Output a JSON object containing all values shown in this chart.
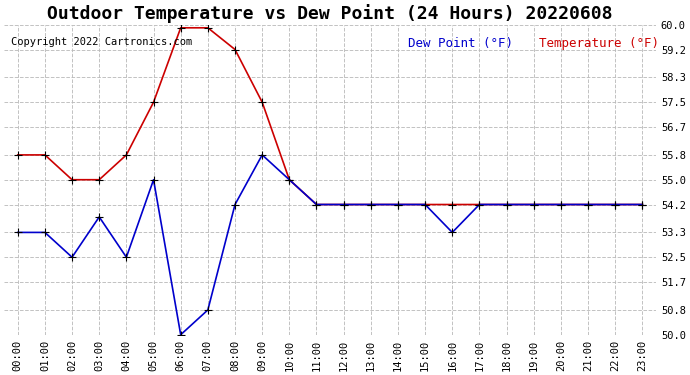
{
  "title": "Outdoor Temperature vs Dew Point (24 Hours) 20220608",
  "copyright_text": "Copyright 2022 Cartronics.com",
  "legend_dew": "Dew Point (°F)",
  "legend_temp": "Temperature (°F)",
  "hours": [
    "00:00",
    "01:00",
    "02:00",
    "03:00",
    "04:00",
    "05:00",
    "06:00",
    "07:00",
    "08:00",
    "09:00",
    "10:00",
    "11:00",
    "12:00",
    "13:00",
    "14:00",
    "15:00",
    "16:00",
    "17:00",
    "18:00",
    "19:00",
    "20:00",
    "21:00",
    "22:00",
    "23:00"
  ],
  "temperature": [
    55.8,
    55.8,
    55.0,
    55.0,
    55.8,
    57.5,
    59.9,
    59.9,
    59.2,
    57.5,
    55.0,
    54.2,
    54.2,
    54.2,
    54.2,
    54.2,
    54.2,
    54.2,
    54.2,
    54.2,
    54.2,
    54.2,
    54.2,
    54.2
  ],
  "dew_point": [
    53.3,
    53.3,
    52.5,
    53.8,
    52.5,
    55.0,
    50.0,
    50.8,
    54.2,
    55.8,
    55.0,
    54.2,
    54.2,
    54.2,
    54.2,
    54.2,
    53.3,
    54.2,
    54.2,
    54.2,
    54.2,
    54.2,
    54.2,
    54.2
  ],
  "temp_color": "#cc0000",
  "dew_color": "#0000cc",
  "ylim_min": 50.0,
  "ylim_max": 60.0,
  "yticks": [
    50.0,
    50.8,
    51.7,
    52.5,
    53.3,
    54.2,
    55.0,
    55.8,
    56.7,
    57.5,
    58.3,
    59.2,
    60.0
  ],
  "bg_color": "#ffffff",
  "grid_color": "#bbbbbb",
  "title_fontsize": 13,
  "tick_fontsize": 7.5,
  "legend_fontsize": 9,
  "marker": "+",
  "marker_size": 6,
  "linewidth": 1.2
}
